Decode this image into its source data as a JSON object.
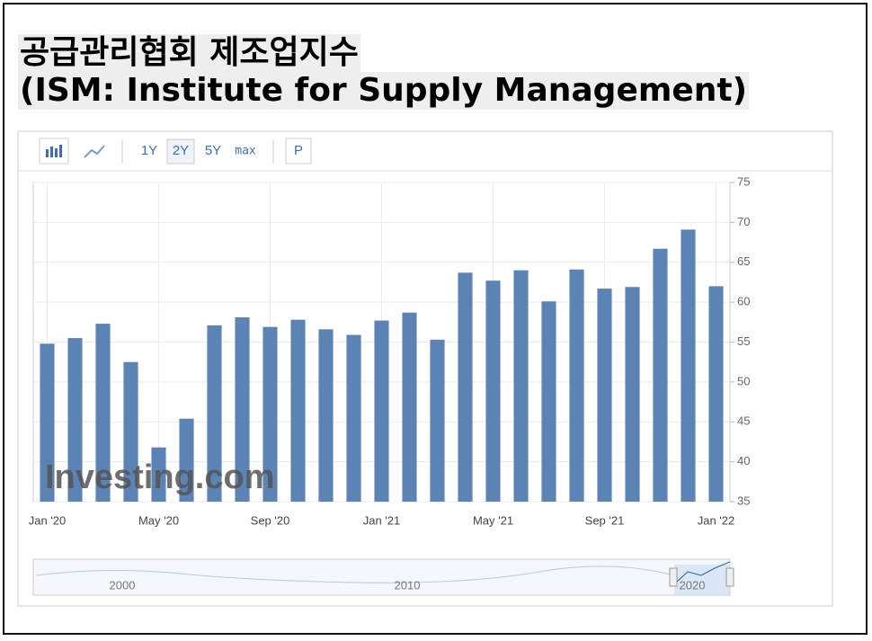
{
  "header": {
    "title": "공급관리협회 제조업지수",
    "subtitle": "(ISM: Institute for Supply Management)"
  },
  "toolbar": {
    "ranges": [
      "1Y",
      "2Y",
      "5Y",
      "max",
      "P"
    ]
  },
  "navigator": {
    "labels": [
      "2000",
      "2010",
      "2020"
    ]
  },
  "chart_data": {
    "type": "bar",
    "watermark": "Investing.com",
    "categories": [
      "Jan '20",
      null,
      null,
      null,
      "May '20",
      null,
      null,
      null,
      "Sep '20",
      null,
      null,
      null,
      "Jan '21",
      null,
      null,
      null,
      "May '21",
      null,
      null,
      null,
      "Sep '21",
      null,
      null,
      null,
      "Jan '22"
    ],
    "values": [
      54.8,
      55.5,
      57.3,
      52.5,
      41.8,
      45.4,
      57.1,
      58.1,
      56.9,
      57.8,
      56.6,
      55.9,
      57.7,
      58.7,
      55.3,
      63.7,
      62.7,
      64.0,
      60.1,
      64.1,
      61.7,
      61.9,
      66.7,
      69.1,
      62.0
    ],
    "color": "#5b84b5",
    "ylim": [
      35,
      75
    ],
    "yticks": [
      35,
      40,
      45,
      50,
      55,
      60,
      65,
      70,
      75
    ],
    "grid": true,
    "y_axis_side": "right"
  }
}
